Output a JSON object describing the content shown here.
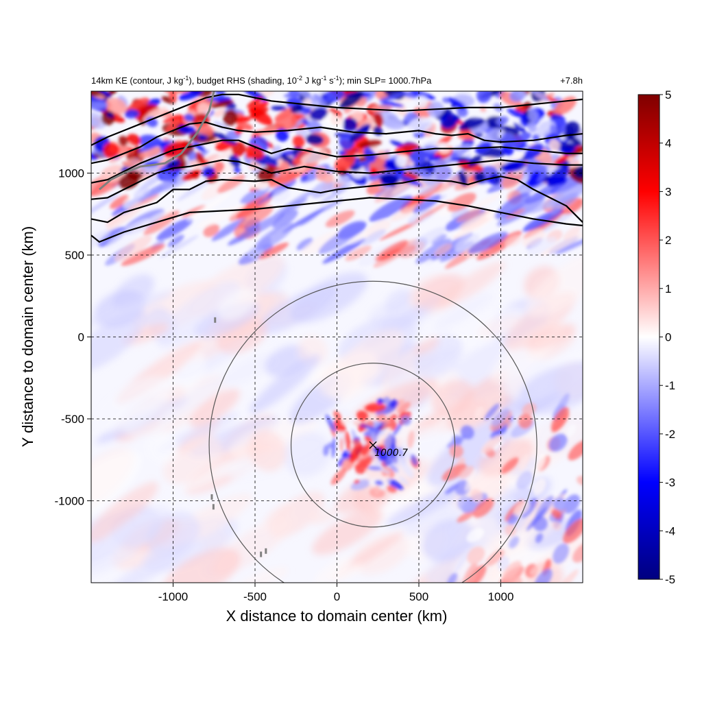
{
  "chart_data": {
    "type": "heatmap",
    "title_left_parts": {
      "p1": "14km KE (contour, J kg",
      "p2": "-1",
      "p3": "), budget RHS (shading, 10",
      "p4": "-2",
      "p5": " J kg",
      "p6": "-1",
      "p7": " s",
      "p8": "-1",
      "p9": "); min SLP= 1000.7hPa"
    },
    "title_right": "+7.8h",
    "xlabel": "X distance to domain center (km)",
    "ylabel": "Y distance to domain center (km)",
    "xlim": [
      -1500,
      1500
    ],
    "ylim": [
      -1500,
      1500
    ],
    "x_ticks": [
      -1000,
      -500,
      0,
      500,
      1000
    ],
    "y_ticks": [
      1000,
      500,
      0,
      -500,
      -1000
    ],
    "x_tick_labels": [
      "-1000",
      "-500",
      "0",
      "500",
      "1000"
    ],
    "y_tick_labels": [
      "1000",
      "500",
      "0",
      "-500",
      "-1000"
    ],
    "grid": true,
    "colorbar": {
      "range": [
        -5,
        5
      ],
      "ticks": [
        5,
        4,
        3,
        2,
        1,
        0,
        -1,
        -2,
        -3,
        -4,
        -5
      ],
      "tick_labels": [
        "5",
        "4",
        "3",
        "2",
        "1",
        "0",
        "-1",
        "-2",
        "-3",
        "-4",
        "-5"
      ],
      "colormap": [
        "#00007f",
        "#0000ff",
        "#ffffff",
        "#ff0000",
        "#7f0000"
      ],
      "placement": "right"
    },
    "center_marker": {
      "x": 220,
      "y": -660,
      "label": "1000.7"
    },
    "range_rings_km": [
      500,
      1000
    ],
    "ke_contours": [
      {
        "points": [
          [
            -1500,
            620
          ],
          [
            -1450,
            580
          ],
          [
            -1300,
            640
          ],
          [
            -1100,
            700
          ],
          [
            -900,
            760
          ],
          [
            -700,
            770
          ],
          [
            -500,
            780
          ],
          [
            -300,
            800
          ],
          [
            -100,
            820
          ],
          [
            0,
            830
          ],
          [
            200,
            850
          ],
          [
            400,
            840
          ],
          [
            600,
            830
          ],
          [
            800,
            800
          ],
          [
            1000,
            760
          ],
          [
            1200,
            720
          ],
          [
            1400,
            690
          ],
          [
            1500,
            680
          ]
        ]
      },
      {
        "points": [
          [
            -1500,
            720
          ],
          [
            -1400,
            700
          ],
          [
            -1300,
            760
          ],
          [
            -1100,
            820
          ],
          [
            -1000,
            900
          ],
          [
            -900,
            900
          ],
          [
            -800,
            950
          ],
          [
            -700,
            960
          ],
          [
            -500,
            950
          ],
          [
            -400,
            960
          ],
          [
            -300,
            910
          ],
          [
            -100,
            880
          ],
          [
            0,
            900
          ],
          [
            200,
            920
          ],
          [
            400,
            940
          ],
          [
            500,
            960
          ],
          [
            700,
            950
          ],
          [
            800,
            930
          ],
          [
            900,
            960
          ],
          [
            1000,
            980
          ],
          [
            1100,
            960
          ],
          [
            1200,
            900
          ],
          [
            1400,
            800
          ],
          [
            1500,
            700
          ]
        ]
      },
      {
        "points": [
          [
            -1500,
            840
          ],
          [
            -1400,
            850
          ],
          [
            -1300,
            900
          ],
          [
            -1200,
            950
          ],
          [
            -1100,
            1000
          ],
          [
            -1000,
            1030
          ],
          [
            -900,
            1040
          ],
          [
            -800,
            1060
          ],
          [
            -700,
            1080
          ],
          [
            -600,
            1070
          ],
          [
            -500,
            1040
          ],
          [
            -400,
            1000
          ],
          [
            -300,
            1020
          ],
          [
            -200,
            1040
          ],
          [
            0,
            1010
          ],
          [
            200,
            1000
          ],
          [
            400,
            1020
          ],
          [
            600,
            1040
          ],
          [
            800,
            1060
          ],
          [
            1000,
            1080
          ],
          [
            1200,
            1060
          ],
          [
            1400,
            1050
          ],
          [
            1500,
            1050
          ]
        ]
      },
      {
        "points": [
          [
            -1500,
            940
          ],
          [
            -1400,
            960
          ],
          [
            -1300,
            1010
          ],
          [
            -1200,
            1060
          ],
          [
            -1100,
            1100
          ],
          [
            -1000,
            1140
          ],
          [
            -900,
            1160
          ],
          [
            -800,
            1180
          ],
          [
            -700,
            1200
          ],
          [
            -600,
            1200
          ],
          [
            -500,
            1160
          ],
          [
            -400,
            1120
          ],
          [
            -300,
            1150
          ],
          [
            -200,
            1140
          ],
          [
            0,
            1100
          ],
          [
            200,
            1110
          ],
          [
            400,
            1130
          ],
          [
            600,
            1150
          ],
          [
            800,
            1150
          ],
          [
            1000,
            1160
          ],
          [
            1200,
            1140
          ],
          [
            1400,
            1120
          ],
          [
            1500,
            1120
          ]
        ]
      },
      {
        "points": [
          [
            -1500,
            1060
          ],
          [
            -1400,
            1080
          ],
          [
            -1300,
            1120
          ],
          [
            -1200,
            1160
          ],
          [
            -1100,
            1220
          ],
          [
            -1000,
            1260
          ],
          [
            -900,
            1300
          ],
          [
            -800,
            1310
          ],
          [
            -700,
            1280
          ],
          [
            -600,
            1260
          ],
          [
            -500,
            1250
          ],
          [
            -300,
            1260
          ],
          [
            -100,
            1280
          ],
          [
            100,
            1250
          ],
          [
            300,
            1240
          ],
          [
            500,
            1260
          ],
          [
            600,
            1240
          ],
          [
            700,
            1230
          ],
          [
            800,
            1240
          ],
          [
            900,
            1200
          ],
          [
            1000,
            1190
          ],
          [
            1200,
            1200
          ],
          [
            1400,
            1230
          ],
          [
            1500,
            1240
          ]
        ]
      },
      {
        "points": [
          [
            -1500,
            1170
          ],
          [
            -1400,
            1220
          ],
          [
            -1300,
            1260
          ],
          [
            -1200,
            1300
          ],
          [
            -1100,
            1340
          ],
          [
            -1000,
            1380
          ],
          [
            -900,
            1420
          ],
          [
            -800,
            1460
          ],
          [
            -700,
            1480
          ],
          [
            -600,
            1480
          ],
          [
            -400,
            1440
          ],
          [
            -200,
            1420
          ],
          [
            0,
            1400
          ],
          [
            200,
            1390
          ],
          [
            400,
            1380
          ],
          [
            600,
            1390
          ],
          [
            800,
            1400
          ],
          [
            1000,
            1400
          ],
          [
            1200,
            1420
          ],
          [
            1400,
            1440
          ],
          [
            1500,
            1450
          ]
        ]
      }
    ]
  }
}
